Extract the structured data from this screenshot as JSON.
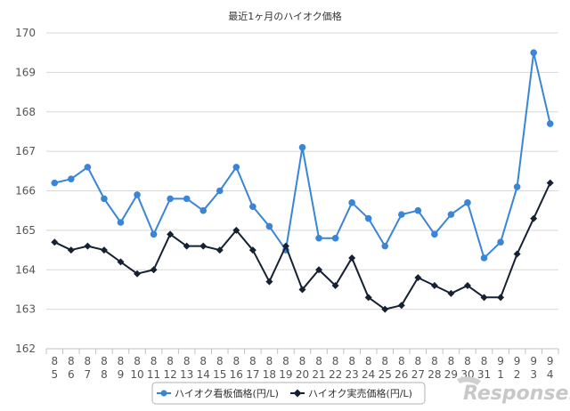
{
  "chart_data": {
    "type": "line",
    "title": "最近1ヶ月のハイオク価格",
    "xlabel": "",
    "ylabel": "",
    "ylim": [
      162,
      170
    ],
    "yticks": [
      162,
      163,
      164,
      165,
      166,
      167,
      168,
      169,
      170
    ],
    "grid": true,
    "legend_position": "bottom",
    "categories": [
      [
        "8",
        "5"
      ],
      [
        "8",
        "6"
      ],
      [
        "8",
        "7"
      ],
      [
        "8",
        "8"
      ],
      [
        "8",
        "9"
      ],
      [
        "8",
        "10"
      ],
      [
        "8",
        "11"
      ],
      [
        "8",
        "12"
      ],
      [
        "8",
        "13"
      ],
      [
        "8",
        "14"
      ],
      [
        "8",
        "15"
      ],
      [
        "8",
        "16"
      ],
      [
        "8",
        "17"
      ],
      [
        "8",
        "18"
      ],
      [
        "8",
        "19"
      ],
      [
        "8",
        "20"
      ],
      [
        "8",
        "21"
      ],
      [
        "8",
        "22"
      ],
      [
        "8",
        "23"
      ],
      [
        "8",
        "24"
      ],
      [
        "8",
        "25"
      ],
      [
        "8",
        "26"
      ],
      [
        "8",
        "27"
      ],
      [
        "8",
        "28"
      ],
      [
        "8",
        "29"
      ],
      [
        "8",
        "30"
      ],
      [
        "8",
        "31"
      ],
      [
        "9",
        "1"
      ],
      [
        "9",
        "2"
      ],
      [
        "9",
        "3"
      ],
      [
        "9",
        "4"
      ]
    ],
    "series": [
      {
        "name": "ハイオク看板価格(円/L)",
        "color": "#3a85d6",
        "marker": "circle",
        "values": [
          166.2,
          166.3,
          166.6,
          165.8,
          165.2,
          165.9,
          164.9,
          165.8,
          165.8,
          165.5,
          166.0,
          166.6,
          165.6,
          165.1,
          164.5,
          167.1,
          164.8,
          164.8,
          165.7,
          165.3,
          164.6,
          165.4,
          165.5,
          164.9,
          165.4,
          165.7,
          164.3,
          164.7,
          166.1,
          169.5,
          167.7
        ]
      },
      {
        "name": "ハイオク実売価格(円/L)",
        "color": "#152233",
        "marker": "diamond",
        "values": [
          164.7,
          164.5,
          164.6,
          164.5,
          164.2,
          163.9,
          164.0,
          164.9,
          164.6,
          164.6,
          164.5,
          165.0,
          164.5,
          163.7,
          164.6,
          163.5,
          164.0,
          163.6,
          164.3,
          163.3,
          163.0,
          163.1,
          163.8,
          163.6,
          163.4,
          163.6,
          163.3,
          163.3,
          164.4,
          165.3,
          166.2
        ]
      }
    ]
  },
  "watermark": {
    "text": "Response."
  }
}
